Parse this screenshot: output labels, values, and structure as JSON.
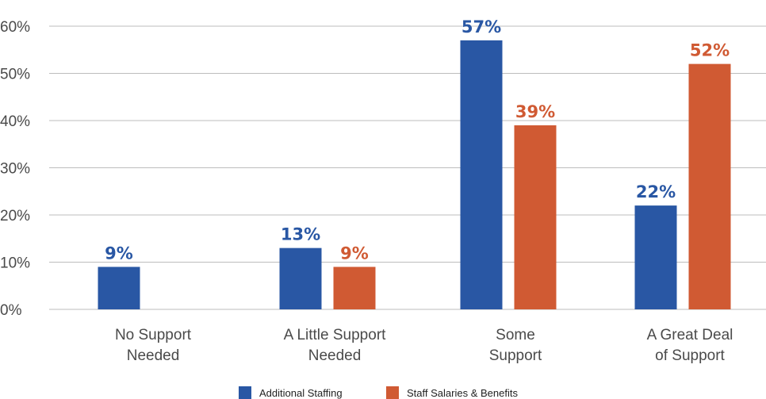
{
  "chart_data": {
    "type": "bar",
    "categories": [
      [
        "No Support",
        "Needed"
      ],
      [
        "A Little Support",
        "Needed"
      ],
      [
        "Some",
        "Support"
      ],
      [
        "A Great Deal",
        "of Support"
      ]
    ],
    "series": [
      {
        "name": "Additional Staffing",
        "color": "#2957A4",
        "values": [
          9,
          13,
          57,
          22
        ],
        "labels": [
          "9%",
          "13%",
          "57%",
          "22%"
        ]
      },
      {
        "name": "Staff Salaries & Benefits",
        "color": "#D05A33",
        "values": [
          null,
          9,
          39,
          52
        ],
        "labels": [
          null,
          "9%",
          "39%",
          "52%"
        ]
      }
    ],
    "ylim": [
      0,
      60
    ],
    "yticks": [
      0,
      10,
      20,
      30,
      40,
      50,
      60
    ],
    "ytick_labels": [
      "0%",
      "10%",
      "20%",
      "30%",
      "40%",
      "50%",
      "60%"
    ],
    "grid": true,
    "legend_position": "bottom"
  }
}
